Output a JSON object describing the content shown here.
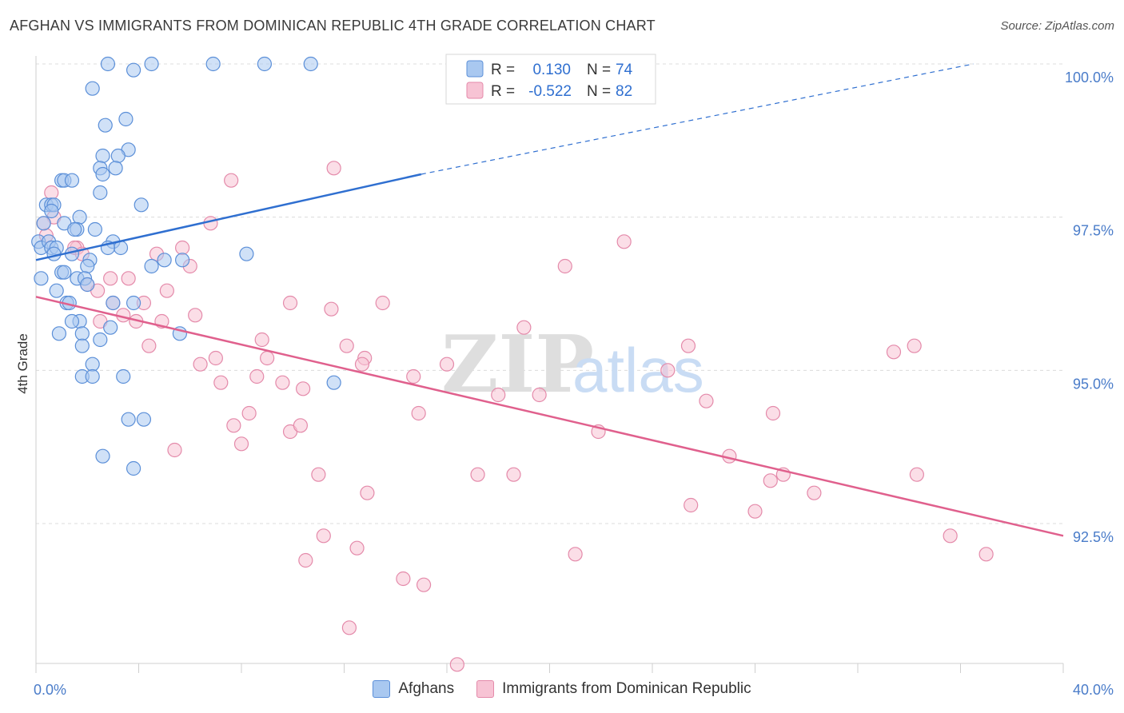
{
  "title": "AFGHAN VS IMMIGRANTS FROM DOMINICAN REPUBLIC 4TH GRADE CORRELATION CHART",
  "source": "Source: ZipAtlas.com",
  "watermark": {
    "zip": "ZIP",
    "atlas": "atlas"
  },
  "colors": {
    "afghans_fill": "#a9c8f0",
    "afghans_stroke": "#5b8fd8",
    "afghans_line": "#2f6fd0",
    "dominican_fill": "#f7c3d4",
    "dominican_stroke": "#e48aaa",
    "dominican_line": "#e0608d",
    "axis_text": "#4a7cc9",
    "grid": "#dcdcdc"
  },
  "legend": {
    "r_label": "R =",
    "n_label": "N =",
    "afghans": {
      "r": "0.130",
      "n": "74"
    },
    "dominican": {
      "r": "-0.522",
      "n": "82"
    }
  },
  "bottom_legend": {
    "afghans": "Afghans",
    "dominican": "Immigrants from Dominican Republic"
  },
  "chart_data": {
    "type": "scatter",
    "title": "AFGHAN VS IMMIGRANTS FROM DOMINICAN REPUBLIC 4TH GRADE CORRELATION CHART",
    "xlabel": "",
    "ylabel": "4th Grade",
    "xlim": [
      0,
      40
    ],
    "ylim": [
      90.0,
      100.3
    ],
    "x_tick_labels": [
      "0.0%",
      "40.0%"
    ],
    "y_ticks": [
      92.5,
      95.0,
      97.5,
      100.0
    ],
    "y_tick_labels": [
      "92.5%",
      "95.0%",
      "97.5%",
      "100.0%"
    ],
    "grid": true,
    "series": [
      {
        "name": "Afghans",
        "trend": {
          "x": [
            0,
            15
          ],
          "y": [
            96.8,
            98.2
          ],
          "dashed_to": {
            "x": 36.5,
            "y": 100.0
          }
        },
        "points": [
          [
            2.8,
            100
          ],
          [
            3.8,
            99.9
          ],
          [
            4.5,
            100
          ],
          [
            6.9,
            100
          ],
          [
            8.9,
            100
          ],
          [
            10.7,
            100
          ],
          [
            2.2,
            99.6
          ],
          [
            2.7,
            99.0
          ],
          [
            3.5,
            99.1
          ],
          [
            2.6,
            98.5
          ],
          [
            3.6,
            98.6
          ],
          [
            3.2,
            98.5
          ],
          [
            3.1,
            98.3
          ],
          [
            2.5,
            98.3
          ],
          [
            2.6,
            98.2
          ],
          [
            1.0,
            98.1
          ],
          [
            1.1,
            98.1
          ],
          [
            1.4,
            98.1
          ],
          [
            2.5,
            97.9
          ],
          [
            0.4,
            97.7
          ],
          [
            0.6,
            97.7
          ],
          [
            0.7,
            97.7
          ],
          [
            4.1,
            97.7
          ],
          [
            0.6,
            97.6
          ],
          [
            1.7,
            97.5
          ],
          [
            1.1,
            97.4
          ],
          [
            0.3,
            97.4
          ],
          [
            2.3,
            97.3
          ],
          [
            1.6,
            97.3
          ],
          [
            1.5,
            97.3
          ],
          [
            0.1,
            97.1
          ],
          [
            0.2,
            97.0
          ],
          [
            0.5,
            97.1
          ],
          [
            0.6,
            97.0
          ],
          [
            3.0,
            97.1
          ],
          [
            3.3,
            97.0
          ],
          [
            2.8,
            97.0
          ],
          [
            0.8,
            97.0
          ],
          [
            0.7,
            96.9
          ],
          [
            1.4,
            96.9
          ],
          [
            8.2,
            96.9
          ],
          [
            2.1,
            96.8
          ],
          [
            4.5,
            96.7
          ],
          [
            5.0,
            96.8
          ],
          [
            5.7,
            96.8
          ],
          [
            2.0,
            96.7
          ],
          [
            1.0,
            96.6
          ],
          [
            1.1,
            96.6
          ],
          [
            0.2,
            96.5
          ],
          [
            1.6,
            96.5
          ],
          [
            1.9,
            96.5
          ],
          [
            2.0,
            96.4
          ],
          [
            0.8,
            96.3
          ],
          [
            1.2,
            96.1
          ],
          [
            3.0,
            96.1
          ],
          [
            3.8,
            96.1
          ],
          [
            1.3,
            96.1
          ],
          [
            1.7,
            95.8
          ],
          [
            1.4,
            95.8
          ],
          [
            2.9,
            95.7
          ],
          [
            1.8,
            95.6
          ],
          [
            5.6,
            95.6
          ],
          [
            0.9,
            95.6
          ],
          [
            2.5,
            95.5
          ],
          [
            1.8,
            95.4
          ],
          [
            2.2,
            95.1
          ],
          [
            3.4,
            94.9
          ],
          [
            1.8,
            94.9
          ],
          [
            2.2,
            94.9
          ],
          [
            11.6,
            94.8
          ],
          [
            3.6,
            94.2
          ],
          [
            4.2,
            94.2
          ],
          [
            2.6,
            93.6
          ],
          [
            3.8,
            93.4
          ]
        ]
      },
      {
        "name": "Immigrants from Dominican Republic",
        "trend": {
          "x": [
            0,
            40
          ],
          "y": [
            96.2,
            92.3
          ]
        },
        "points": [
          [
            0.6,
            97.9
          ],
          [
            11.6,
            98.3
          ],
          [
            7.6,
            98.1
          ],
          [
            0.7,
            97.5
          ],
          [
            0.3,
            97.4
          ],
          [
            6.8,
            97.4
          ],
          [
            0.4,
            97.2
          ],
          [
            22.9,
            97.1
          ],
          [
            1.6,
            97.0
          ],
          [
            1.5,
            97.0
          ],
          [
            5.7,
            97.0
          ],
          [
            1.8,
            96.9
          ],
          [
            4.7,
            96.9
          ],
          [
            6.0,
            96.7
          ],
          [
            20.6,
            96.7
          ],
          [
            2.9,
            96.5
          ],
          [
            3.6,
            96.5
          ],
          [
            2.0,
            96.4
          ],
          [
            2.4,
            96.3
          ],
          [
            5.1,
            96.3
          ],
          [
            3.0,
            96.1
          ],
          [
            4.2,
            96.1
          ],
          [
            9.9,
            96.1
          ],
          [
            13.5,
            96.1
          ],
          [
            11.5,
            96.0
          ],
          [
            6.2,
            95.9
          ],
          [
            3.4,
            95.9
          ],
          [
            2.5,
            95.8
          ],
          [
            3.9,
            95.8
          ],
          [
            4.9,
            95.8
          ],
          [
            19.0,
            95.7
          ],
          [
            8.8,
            95.5
          ],
          [
            25.4,
            95.4
          ],
          [
            12.1,
            95.4
          ],
          [
            4.4,
            95.4
          ],
          [
            34.2,
            95.4
          ],
          [
            33.4,
            95.3
          ],
          [
            12.8,
            95.2
          ],
          [
            7.0,
            95.2
          ],
          [
            9.0,
            95.2
          ],
          [
            6.4,
            95.1
          ],
          [
            12.7,
            95.1
          ],
          [
            16.0,
            95.1
          ],
          [
            24.6,
            95.0
          ],
          [
            7.2,
            94.8
          ],
          [
            8.6,
            94.9
          ],
          [
            14.7,
            94.9
          ],
          [
            9.6,
            94.8
          ],
          [
            10.4,
            94.7
          ],
          [
            18.0,
            94.6
          ],
          [
            19.6,
            94.6
          ],
          [
            26.1,
            94.5
          ],
          [
            8.3,
            94.3
          ],
          [
            14.9,
            94.3
          ],
          [
            28.7,
            94.3
          ],
          [
            7.7,
            94.1
          ],
          [
            9.9,
            94.0
          ],
          [
            10.3,
            94.1
          ],
          [
            21.9,
            94.0
          ],
          [
            8.0,
            93.8
          ],
          [
            5.4,
            93.7
          ],
          [
            27.0,
            93.6
          ],
          [
            17.2,
            93.3
          ],
          [
            18.6,
            93.3
          ],
          [
            34.3,
            93.3
          ],
          [
            11.0,
            93.3
          ],
          [
            29.1,
            93.3
          ],
          [
            28.6,
            93.2
          ],
          [
            12.9,
            93.0
          ],
          [
            30.3,
            93.0
          ],
          [
            25.5,
            92.8
          ],
          [
            28.0,
            92.7
          ],
          [
            11.2,
            92.3
          ],
          [
            35.6,
            92.3
          ],
          [
            12.5,
            92.1
          ],
          [
            37.0,
            92.0
          ],
          [
            21.0,
            92.0
          ],
          [
            10.5,
            91.9
          ],
          [
            14.3,
            91.6
          ],
          [
            15.1,
            91.5
          ],
          [
            12.2,
            90.8
          ],
          [
            16.4,
            90.2
          ]
        ]
      }
    ]
  }
}
